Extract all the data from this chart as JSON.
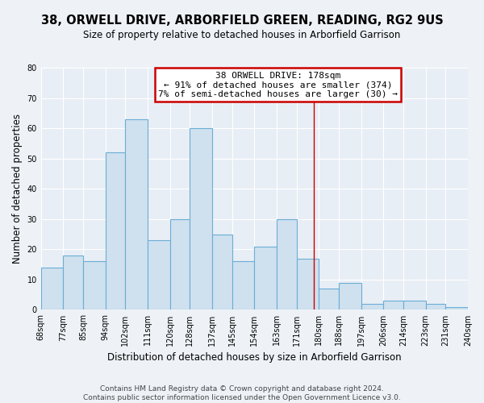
{
  "title": "38, ORWELL DRIVE, ARBORFIELD GREEN, READING, RG2 9US",
  "subtitle": "Size of property relative to detached houses in Arborfield Garrison",
  "xlabel": "Distribution of detached houses by size in Arborfield Garrison",
  "ylabel": "Number of detached properties",
  "bar_edges": [
    68,
    77,
    85,
    94,
    102,
    111,
    120,
    128,
    137,
    145,
    154,
    163,
    171,
    180,
    188,
    197,
    206,
    214,
    223,
    231,
    240
  ],
  "bar_heights": [
    14,
    18,
    16,
    52,
    63,
    23,
    30,
    60,
    25,
    16,
    21,
    30,
    17,
    7,
    9,
    2,
    3,
    3,
    2,
    1
  ],
  "bar_color": "#cfe0ee",
  "bar_edgecolor": "#6aaed6",
  "reference_line_x": 178,
  "reference_line_color": "#cc0000",
  "ylim": [
    0,
    80
  ],
  "yticks": [
    0,
    10,
    20,
    30,
    40,
    50,
    60,
    70,
    80
  ],
  "xtick_labels": [
    "68sqm",
    "77sqm",
    "85sqm",
    "94sqm",
    "102sqm",
    "111sqm",
    "120sqm",
    "128sqm",
    "137sqm",
    "145sqm",
    "154sqm",
    "163sqm",
    "171sqm",
    "180sqm",
    "188sqm",
    "197sqm",
    "206sqm",
    "214sqm",
    "223sqm",
    "231sqm",
    "240sqm"
  ],
  "annotation_title": "38 ORWELL DRIVE: 178sqm",
  "annotation_line1": "← 91% of detached houses are smaller (374)",
  "annotation_line2": "7% of semi-detached houses are larger (30) →",
  "footer_line1": "Contains HM Land Registry data © Crown copyright and database right 2024.",
  "footer_line2": "Contains public sector information licensed under the Open Government Licence v3.0.",
  "background_color": "#eef2f7",
  "plot_bg_color": "#e8eef5",
  "grid_color": "#ffffff",
  "title_fontsize": 10.5,
  "subtitle_fontsize": 8.5,
  "axis_label_fontsize": 8.5,
  "tick_fontsize": 7,
  "annotation_fontsize": 8,
  "footer_fontsize": 6.5
}
